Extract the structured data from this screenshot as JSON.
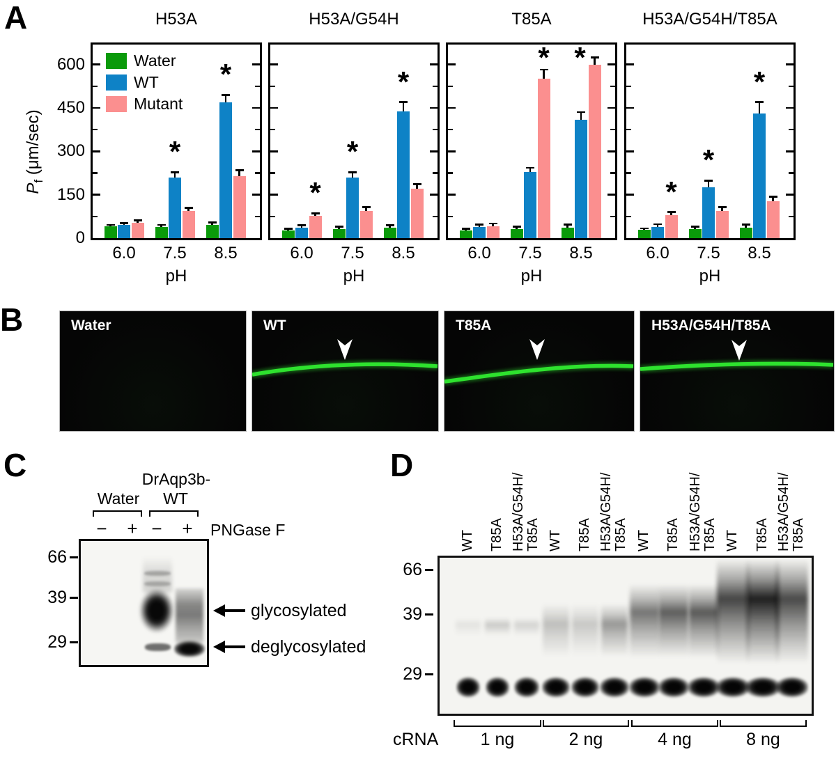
{
  "colors": {
    "water_green": "#0a9a0a",
    "wt_blue": "#0e82c6",
    "mutant_pink": "#fb8f8f",
    "membrane_green": "#2ee22e",
    "photo_background": "#050505"
  },
  "panel_a": {
    "letter": "A",
    "ylabel": {
      "symbol": "P",
      "subscript": "f",
      "units": "(μm/sec)"
    },
    "xlabel": "pH",
    "yticks": [
      0,
      150,
      300,
      450,
      600
    ],
    "legend": [
      {
        "label": "Water",
        "color": "#0a9a0a"
      },
      {
        "label": "WT",
        "color": "#0e82c6"
      },
      {
        "label": "Mutant",
        "color": "#fb8f8f"
      }
    ]
  },
  "chart_data": [
    {
      "type": "bar",
      "title": "H53A",
      "categories": [
        "6.0",
        "7.5",
        "8.5"
      ],
      "xlabel": "pH",
      "ylabel": "Pf (μm/sec)",
      "ylim": [
        0,
        670
      ],
      "yticks": [
        0,
        150,
        300,
        450,
        600
      ],
      "minor_tick_step": 75,
      "grid": false,
      "series": [
        {
          "name": "Water",
          "color": "#0a9a0a",
          "values": [
            40,
            38,
            45
          ],
          "errors": [
            6,
            8,
            9
          ],
          "sig": [
            false,
            false,
            false
          ]
        },
        {
          "name": "WT",
          "color": "#0e82c6",
          "values": [
            45,
            210,
            470
          ],
          "errors": [
            7,
            18,
            25
          ],
          "sig": [
            false,
            true,
            true
          ]
        },
        {
          "name": "Mutant",
          "color": "#fb8f8f",
          "values": [
            52,
            93,
            213
          ],
          "errors": [
            9,
            12,
            22
          ],
          "sig": [
            false,
            false,
            false
          ]
        }
      ]
    },
    {
      "type": "bar",
      "title": "H53A/G54H",
      "categories": [
        "6.0",
        "7.5",
        "8.5"
      ],
      "xlabel": "pH",
      "ylabel": "Pf (μm/sec)",
      "ylim": [
        0,
        670
      ],
      "yticks": [
        0,
        150,
        300,
        450,
        600
      ],
      "minor_tick_step": 75,
      "grid": false,
      "series": [
        {
          "name": "Water",
          "color": "#0a9a0a",
          "values": [
            27,
            32,
            37
          ],
          "errors": [
            5,
            8,
            8
          ],
          "sig": [
            false,
            false,
            false
          ]
        },
        {
          "name": "WT",
          "color": "#0e82c6",
          "values": [
            37,
            210,
            437
          ],
          "errors": [
            8,
            18,
            33
          ],
          "sig": [
            false,
            true,
            true
          ]
        },
        {
          "name": "Mutant",
          "color": "#fb8f8f",
          "values": [
            78,
            95,
            172
          ],
          "errors": [
            8,
            12,
            15
          ],
          "sig": [
            true,
            false,
            false
          ]
        }
      ]
    },
    {
      "type": "bar",
      "title": "T85A",
      "categories": [
        "6.0",
        "7.5",
        "8.5"
      ],
      "xlabel": "pH",
      "ylabel": "Pf (μm/sec)",
      "ylim": [
        0,
        670
      ],
      "yticks": [
        0,
        150,
        300,
        450,
        600
      ],
      "minor_tick_step": 75,
      "grid": false,
      "series": [
        {
          "name": "Water",
          "color": "#0a9a0a",
          "values": [
            27,
            32,
            37
          ],
          "errors": [
            5,
            8,
            10
          ],
          "sig": [
            false,
            false,
            false
          ]
        },
        {
          "name": "WT",
          "color": "#0e82c6",
          "values": [
            38,
            228,
            408
          ],
          "errors": [
            9,
            15,
            28
          ],
          "sig": [
            false,
            false,
            false
          ]
        },
        {
          "name": "Mutant",
          "color": "#fb8f8f",
          "values": [
            40,
            550,
            600
          ],
          "errors": [
            10,
            33,
            25
          ],
          "sig": [
            false,
            true,
            true
          ]
        }
      ]
    },
    {
      "type": "bar",
      "title": "H53A/G54H/T85A",
      "categories": [
        "6.0",
        "7.5",
        "8.5"
      ],
      "xlabel": "pH",
      "ylabel": "Pf (μm/sec)",
      "ylim": [
        0,
        670
      ],
      "yticks": [
        0,
        150,
        300,
        450,
        600
      ],
      "minor_tick_step": 75,
      "grid": false,
      "series": [
        {
          "name": "Water",
          "color": "#0a9a0a",
          "values": [
            28,
            32,
            37
          ],
          "errors": [
            6,
            8,
            10
          ],
          "sig": [
            false,
            false,
            false
          ]
        },
        {
          "name": "WT",
          "color": "#0e82c6",
          "values": [
            38,
            175,
            430
          ],
          "errors": [
            10,
            24,
            40
          ],
          "sig": [
            false,
            true,
            true
          ]
        },
        {
          "name": "Mutant",
          "color": "#fb8f8f",
          "values": [
            80,
            95,
            128
          ],
          "errors": [
            10,
            12,
            15
          ],
          "sig": [
            true,
            false,
            false
          ]
        }
      ]
    }
  ],
  "panel_b": {
    "letter": "B",
    "panels": [
      {
        "label": "Water",
        "membrane_signal": false,
        "arrowhead": false
      },
      {
        "label": "WT",
        "membrane_signal": true,
        "arrowhead": true
      },
      {
        "label": "T85A",
        "membrane_signal": true,
        "arrowhead": true
      },
      {
        "label": "H53A/G54H/T85A",
        "membrane_signal": true,
        "arrowhead": true
      }
    ]
  },
  "panel_c": {
    "letter": "C",
    "header_top": "DrAqp3b-",
    "group_labels": [
      "Water",
      "WT"
    ],
    "treatments": [
      "−",
      "+",
      "−",
      "+"
    ],
    "treatment_label": "PNGase F",
    "mw_markers": [
      "66",
      "39",
      "29"
    ],
    "annotations": [
      "glycosylated",
      "deglycosylated"
    ]
  },
  "panel_d": {
    "letter": "D",
    "dose_row_label": "cRNA",
    "doses": [
      "1 ng",
      "2 ng",
      "4 ng",
      "8 ng"
    ],
    "mw_markers": [
      "66",
      "39",
      "29"
    ],
    "lanes": [
      {
        "label": "WT",
        "dose": "1 ng",
        "smear": 0.07
      },
      {
        "label": "T85A",
        "dose": "1 ng",
        "smear": 0.18
      },
      {
        "label": "H53A/G54H/\nT85A",
        "dose": "1 ng",
        "smear": 0.14
      },
      {
        "label": "WT",
        "dose": "2 ng",
        "smear": 0.22
      },
      {
        "label": "T85A",
        "dose": "2 ng",
        "smear": 0.18
      },
      {
        "label": "H53A/G54H/\nT85A",
        "dose": "2 ng",
        "smear": 0.38
      },
      {
        "label": "WT",
        "dose": "4 ng",
        "smear": 0.52
      },
      {
        "label": "T85A",
        "dose": "4 ng",
        "smear": 0.62
      },
      {
        "label": "H53A/G54H/\nT85A",
        "dose": "4 ng",
        "smear": 0.64
      },
      {
        "label": "WT",
        "dose": "8 ng",
        "smear": 0.72
      },
      {
        "label": "T85A",
        "dose": "8 ng",
        "smear": 0.88
      },
      {
        "label": "H53A/G54H/\nT85A",
        "dose": "8 ng",
        "smear": 0.7
      }
    ]
  }
}
